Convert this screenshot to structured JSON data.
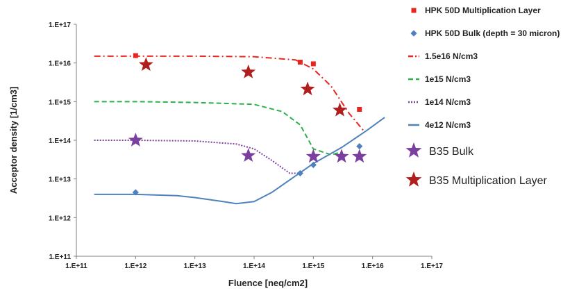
{
  "chart_data": {
    "type": "scatter",
    "xlabel": "Fluence [neq/cm2]",
    "ylabel": "Acceptor density [1/cm3]",
    "xscale": "log",
    "yscale": "log",
    "xlim": [
      100000000000.0,
      1e+17
    ],
    "ylim": [
      100000000000.0,
      1e+17
    ],
    "x_tick_values": [
      100000000000.0,
      1000000000000.0,
      10000000000000.0,
      100000000000000.0,
      1000000000000000.0,
      1e+16,
      1e+17
    ],
    "y_tick_values": [
      100000000000.0,
      1000000000000.0,
      10000000000000.0,
      100000000000000.0,
      1000000000000000.0,
      1e+16,
      1e+17
    ],
    "x_tick_labels": [
      "1.E+11",
      "1.E+12",
      "1.E+13",
      "1.E+14",
      "1.E+15",
      "1.E+16",
      "1.E+17"
    ],
    "y_tick_labels": [
      "1.E+11",
      "1.E+12",
      "1.E+13",
      "1.E+14",
      "1.E+15",
      "1.E+16",
      "1.E+17"
    ],
    "grid": false,
    "legend_position": "right",
    "series": [
      {
        "name": "HPK 50D Multiplication Layer",
        "kind": "markers",
        "marker": "square",
        "color": "#e8251e",
        "x": [
          1000000000000.0,
          600000000000000.0,
          1000000000000000.0,
          6000000000000000.0
        ],
        "y": [
          1.55e+16,
          1.05e+16,
          9500000000000000.0,
          630000000000000.0
        ]
      },
      {
        "name": "HPK 50D Bulk (depth = 30 micron)",
        "kind": "markers",
        "marker": "diamond",
        "color": "#4f81bd",
        "x": [
          1000000000000.0,
          600000000000000.0,
          1000000000000000.0,
          6000000000000000.0
        ],
        "y": [
          4500000000000.0,
          14000000000000.0,
          23000000000000.0,
          70000000000000.0
        ]
      },
      {
        "name": "1.5e16 N/cm3",
        "kind": "line",
        "dash": "dashdot",
        "color": "#e8251e",
        "x": [
          200000000000.0,
          1000000000000.0,
          10000000000000.0,
          100000000000000.0,
          500000000000000.0,
          1000000000000000.0,
          2000000000000000.0,
          4000000000000000.0,
          7000000000000000.0
        ],
        "y": [
          1.5e+16,
          1.5e+16,
          1.5e+16,
          1.45e+16,
          1.2e+16,
          7000000000000000.0,
          2500000000000000.0,
          500000000000000.0,
          180000000000000.0
        ]
      },
      {
        "name": "1e15 N/cm3",
        "kind": "line",
        "dash": "dashed",
        "color": "#2bb04a",
        "x": [
          200000000000.0,
          1000000000000.0,
          10000000000000.0,
          100000000000000.0,
          300000000000000.0,
          600000000000000.0,
          1000000000000000.0,
          2000000000000000.0,
          3000000000000000.0
        ],
        "y": [
          1000000000000000.0,
          1000000000000000.0,
          950000000000000.0,
          850000000000000.0,
          550000000000000.0,
          250000000000000.0,
          60000000000000.0,
          42000000000000.0,
          50000000000000.0
        ]
      },
      {
        "name": "1e14 N/cm3",
        "kind": "line",
        "dash": "dotted",
        "color": "#7b3fa0",
        "x": [
          200000000000.0,
          1000000000000.0,
          10000000000000.0,
          50000000000000.0,
          100000000000000.0,
          200000000000000.0,
          400000000000000.0,
          600000000000000.0
        ],
        "y": [
          100000000000000.0,
          100000000000000.0,
          96000000000000.0,
          80000000000000.0,
          60000000000000.0,
          30000000000000.0,
          14000000000000.0,
          14000000000000.0
        ]
      },
      {
        "name": "4e12 N/cm3",
        "kind": "line",
        "dash": "solid",
        "color": "#4f81bd",
        "x": [
          200000000000.0,
          1000000000000.0,
          5000000000000.0,
          10000000000000.0,
          30000000000000.0,
          50000000000000.0,
          100000000000000.0,
          200000000000000.0,
          500000000000000.0,
          1000000000000000.0,
          3000000000000000.0,
          8000000000000000.0,
          1.6e+16
        ],
        "y": [
          4000000000000.0,
          4000000000000.0,
          3700000000000.0,
          3300000000000.0,
          2600000000000.0,
          2300000000000.0,
          2600000000000.0,
          4500000000000.0,
          12000000000000.0,
          25000000000000.0,
          65000000000000.0,
          180000000000000.0,
          390000000000000.0
        ]
      },
      {
        "name": "B35 Bulk",
        "kind": "markers",
        "marker": "star",
        "color": "#7b3fa0",
        "x": [
          1000000000000.0,
          80000000000000.0,
          1000000000000000.0,
          3000000000000000.0,
          6000000000000000.0
        ],
        "y": [
          100000000000000.0,
          40000000000000.0,
          38000000000000.0,
          38000000000000.0,
          38000000000000.0
        ]
      },
      {
        "name": "B35 Multiplication Layer",
        "kind": "markers",
        "marker": "star",
        "color": "#b01e1e",
        "x": [
          1500000000000.0,
          80000000000000.0,
          800000000000000.0,
          2800000000000000.0
        ],
        "y": [
          9000000000000000.0,
          5800000000000000.0,
          2100000000000000.0,
          600000000000000.0
        ]
      }
    ]
  }
}
